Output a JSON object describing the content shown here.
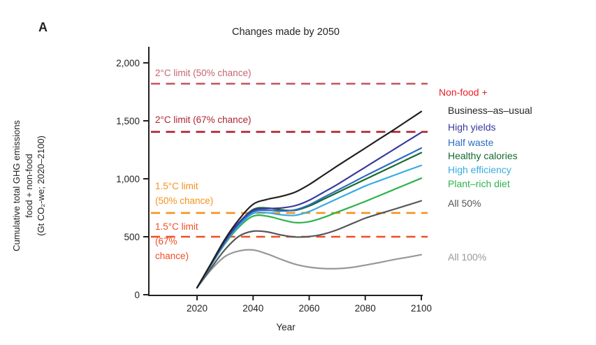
{
  "panel_label": "A",
  "title": "Changes made by 2050",
  "y_axis": {
    "label_lines": [
      "Cumulative total GHG emissions",
      "food + non-food",
      "(Gt CO₂-we; 2020–2100)"
    ],
    "tick_labels": [
      "0",
      "500",
      "1,000",
      "1,500",
      "2,000"
    ],
    "tick_values": [
      0,
      500,
      1000,
      1500,
      2000
    ]
  },
  "x_axis": {
    "label": "Year",
    "tick_labels": [
      "2020",
      "2040",
      "2060",
      "2080",
      "2100"
    ],
    "tick_values": [
      2020,
      2040,
      2060,
      2080,
      2100
    ]
  },
  "legend": {
    "header": {
      "id": "non-food",
      "label": "Non-food +",
      "color": "#ed2024"
    }
  },
  "chart_data": {
    "type": "line",
    "title": "Changes made by 2050",
    "xlabel": "Year",
    "ylabel": "Cumulative total GHG emissions food + non-food (Gt CO₂-we; 2020–2100)",
    "xlim": [
      2020,
      2100
    ],
    "ylim": [
      0,
      2000
    ],
    "grid": false,
    "legend_position": "right",
    "x": [
      2020,
      2025,
      2030,
      2035,
      2040,
      2045,
      2050,
      2055,
      2060,
      2065,
      2070,
      2075,
      2080,
      2085,
      2090,
      2095,
      2100
    ],
    "series": [
      {
        "id": "business-as-usual",
        "name": "Business–as–usual",
        "color": "#231f20",
        "values": [
          60,
          270,
          480,
          650,
          780,
          822,
          848,
          885,
          950,
          1030,
          1110,
          1188,
          1265,
          1343,
          1420,
          1500,
          1580
        ]
      },
      {
        "id": "high-yields",
        "name": "High yields",
        "color": "#3a3a9c",
        "values": [
          60,
          265,
          465,
          625,
          728,
          743,
          748,
          768,
          815,
          882,
          950,
          1025,
          1100,
          1175,
          1250,
          1325,
          1400
        ]
      },
      {
        "id": "half-waste",
        "name": "Half waste",
        "color": "#2d6cc4",
        "values": [
          60,
          262,
          455,
          612,
          715,
          728,
          722,
          732,
          775,
          838,
          900,
          962,
          1025,
          1085,
          1145,
          1205,
          1265
        ]
      },
      {
        "id": "healthy-calories",
        "name": "Healthy calories",
        "color": "#15692f",
        "values": [
          60,
          263,
          460,
          620,
          735,
          748,
          732,
          728,
          765,
          822,
          880,
          938,
          995,
          1053,
          1110,
          1168,
          1225
        ]
      },
      {
        "id": "high-efficiency",
        "name": "High efficiency",
        "color": "#38ace0",
        "values": [
          60,
          258,
          448,
          598,
          700,
          707,
          690,
          685,
          718,
          772,
          828,
          883,
          938,
          983,
          1028,
          1072,
          1115
        ]
      },
      {
        "id": "plant-rich-diet",
        "name": "Plant–rich diet",
        "color": "#2eb24c",
        "values": [
          60,
          255,
          440,
          585,
          678,
          678,
          648,
          622,
          630,
          665,
          712,
          758,
          805,
          855,
          905,
          955,
          1005
        ]
      },
      {
        "id": "all-50",
        "name": "All 50%",
        "color": "#55565a",
        "values": [
          60,
          230,
          390,
          505,
          548,
          542,
          515,
          498,
          502,
          522,
          560,
          610,
          660,
          698,
          735,
          772,
          810
        ]
      },
      {
        "id": "all-100",
        "name": "All 100%",
        "color": "#96989b",
        "values": [
          60,
          215,
          330,
          378,
          386,
          352,
          305,
          263,
          238,
          226,
          225,
          235,
          255,
          277,
          302,
          323,
          345
        ]
      }
    ],
    "reference_lines": [
      {
        "id": "limit-2c-50",
        "label": "2°C limit (50% chance)",
        "value": 1820,
        "line_color": "#c5515e",
        "text_color": "#c46570"
      },
      {
        "id": "limit-2c-67",
        "label": "2°C limit (67% chance)",
        "value": 1405,
        "line_color": "#ad1f2b",
        "text_color": "#ae2430"
      },
      {
        "id": "limit-1p5c-50",
        "label": "1.5°C limit\n(50% chance)",
        "value": 705,
        "line_color": "#f6921e",
        "text_color": "#f6921e"
      },
      {
        "id": "limit-1p5c-67",
        "label": "1.5°C limit\n(67%\nchance)",
        "value": 500,
        "line_color": "#f04f24",
        "text_color": "#f04f24"
      }
    ]
  }
}
